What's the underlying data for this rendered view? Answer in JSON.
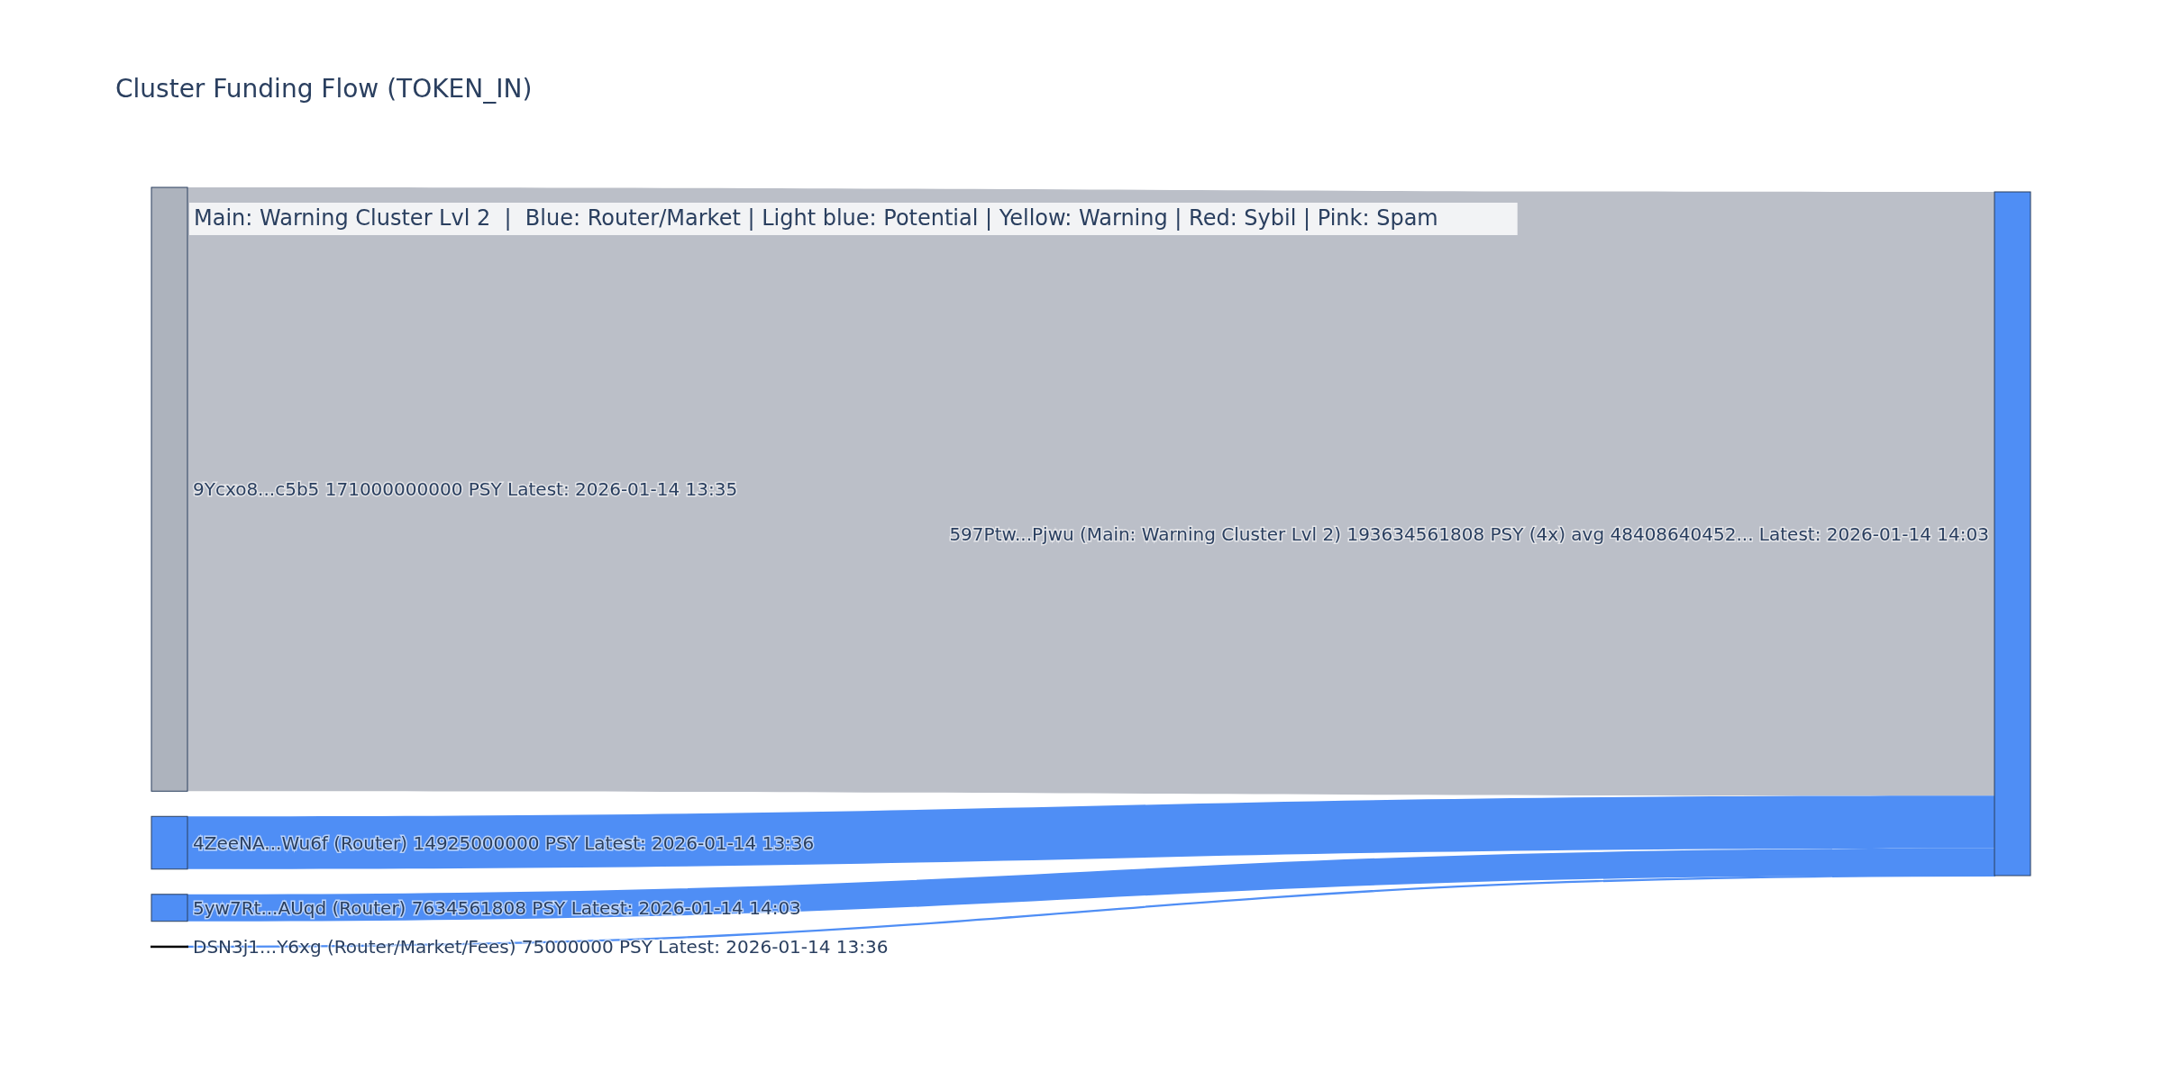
{
  "chart_data": {
    "type": "other",
    "title": "Cluster Funding Flow (TOKEN_IN)",
    "annotations": [
      "Main: Warning Cluster Lvl 2  |  Blue: Router/Market | Light blue: Potential | Yellow: Warning | Red: Sybil | Pink: Spam"
    ],
    "categories": [
      "9Ycxo8...c5b5",
      "4ZeeNA...Wu6f (Router)",
      "5yw7Rt...AUqd (Router)",
      "DSN3j1...Y6xg (Router/Market/Fees)",
      "597Ptw...Pjwu (Main: Warning Cluster Lvl 2)"
    ],
    "values": [
      171000000000,
      14925000000,
      7634561808,
      75000000,
      193634561808
    ],
    "value_labels": [
      "171000000000 PSY Latest: 2026-01-14 13:35",
      "14925000000 PSY Latest: 2026-01-14 13:36",
      "7634561808 PSY Latest: 2026-01-14 14:03",
      "75000000 PSY Latest: 2026-01-14 13:36",
      "193634561808 PSY (4x) avg 48408640452... Latest: 2026-01-14 14:03"
    ],
    "colors": [
      "#adb3bd",
      "#4f8ef5",
      "#4f8ef5",
      "#000000",
      "#4f8ef5"
    ]
  }
}
